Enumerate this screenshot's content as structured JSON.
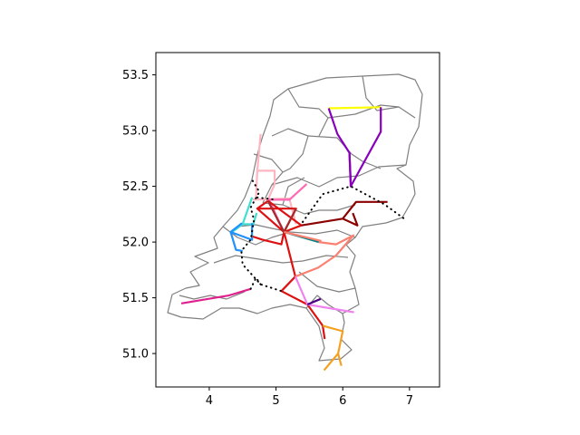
{
  "chart_data": {
    "type": "map",
    "title": "",
    "xlabel": "",
    "ylabel": "",
    "xlim": [
      3.2,
      7.45
    ],
    "ylim": [
      50.7,
      53.7
    ],
    "xticks": [
      4,
      5,
      6,
      7
    ],
    "xtick_labels": [
      "4",
      "5",
      "6",
      "7"
    ],
    "yticks": [
      51.0,
      51.5,
      52.0,
      52.5,
      53.0,
      53.5
    ],
    "ytick_labels": [
      "51.0",
      "51.5",
      "52.0",
      "52.5",
      "53.0",
      "53.5"
    ],
    "grid": false,
    "legend": "none",
    "background_map": {
      "description": "Netherlands provincial and municipal borders",
      "color": "#808080"
    },
    "routes": [
      {
        "color": "#ffff00",
        "style": "solid",
        "points": [
          [
            5.79,
            53.2
          ],
          [
            6.57,
            53.21
          ]
        ]
      },
      {
        "color": "#8800bb",
        "style": "solid",
        "points": [
          [
            5.79,
            53.2
          ],
          [
            5.92,
            52.97
          ],
          [
            6.1,
            52.8
          ],
          [
            6.12,
            52.5
          ],
          [
            6.57,
            52.99
          ],
          [
            6.57,
            53.21
          ]
        ]
      },
      {
        "color": "#8800bb",
        "style": "solid",
        "points": [
          [
            6.1,
            52.8
          ],
          [
            6.12,
            52.54
          ]
        ]
      },
      {
        "color": "#ffb6c1",
        "style": "solid",
        "points": [
          [
            4.77,
            52.97
          ],
          [
            4.72,
            52.64
          ],
          [
            4.7,
            52.4
          ]
        ]
      },
      {
        "color": "#ffb6c1",
        "style": "solid",
        "points": [
          [
            4.72,
            52.64
          ],
          [
            4.98,
            52.64
          ],
          [
            4.98,
            52.52
          ],
          [
            4.88,
            52.38
          ]
        ]
      },
      {
        "color": "#ffb6c1",
        "style": "solid",
        "points": [
          [
            4.65,
            52.38
          ],
          [
            5.2,
            52.39
          ],
          [
            5.3,
            52.16
          ]
        ]
      },
      {
        "color": "#ff69b4",
        "style": "solid",
        "points": [
          [
            4.88,
            52.38
          ],
          [
            5.2,
            52.38
          ],
          [
            5.46,
            52.52
          ]
        ]
      },
      {
        "color": "#ff69b4",
        "style": "solid",
        "points": [
          [
            4.9,
            52.37
          ],
          [
            5.12,
            52.09
          ]
        ]
      },
      {
        "color": "#40e0d0",
        "style": "solid",
        "points": [
          [
            4.64,
            52.4
          ],
          [
            4.5,
            52.16
          ],
          [
            4.32,
            52.08
          ]
        ]
      },
      {
        "color": "#40e0d0",
        "style": "solid",
        "points": [
          [
            4.5,
            52.16
          ],
          [
            4.66,
            52.16
          ],
          [
            4.71,
            52.26
          ]
        ]
      },
      {
        "color": "#1e90ff",
        "style": "solid",
        "points": [
          [
            4.49,
            52.17
          ],
          [
            4.32,
            52.09
          ],
          [
            4.4,
            51.93
          ],
          [
            4.5,
            51.92
          ]
        ]
      },
      {
        "color": "#1e90ff",
        "style": "solid",
        "points": [
          [
            4.32,
            52.09
          ],
          [
            4.64,
            52.02
          ],
          [
            4.64,
            52.17
          ]
        ]
      },
      {
        "color": "#e0208c",
        "style": "solid",
        "points": [
          [
            3.58,
            51.45
          ],
          [
            4.29,
            51.52
          ],
          [
            4.62,
            51.58
          ]
        ]
      },
      {
        "color": "#dd1111",
        "style": "solid",
        "points": [
          [
            4.88,
            52.37
          ],
          [
            4.72,
            52.3
          ],
          [
            5.12,
            52.09
          ],
          [
            5.08,
            51.98
          ],
          [
            4.8,
            52.02
          ],
          [
            4.65,
            52.05
          ]
        ]
      },
      {
        "color": "#dd1111",
        "style": "solid",
        "points": [
          [
            5.12,
            52.09
          ],
          [
            5.29,
            51.69
          ],
          [
            5.08,
            51.56
          ],
          [
            5.47,
            51.44
          ],
          [
            5.7,
            51.25
          ],
          [
            5.73,
            51.13
          ]
        ]
      },
      {
        "color": "#dd1111",
        "style": "solid",
        "points": [
          [
            4.72,
            52.3
          ],
          [
            5.3,
            52.3
          ],
          [
            5.12,
            52.09
          ]
        ]
      },
      {
        "color": "#dd1111",
        "style": "solid",
        "points": [
          [
            4.88,
            52.37
          ],
          [
            5.38,
            52.15
          ],
          [
            5.12,
            52.09
          ]
        ]
      },
      {
        "color": "#8b0000",
        "style": "solid",
        "points": [
          [
            5.38,
            52.15
          ],
          [
            6.0,
            52.21
          ],
          [
            6.2,
            52.36
          ],
          [
            6.67,
            52.36
          ]
        ]
      },
      {
        "color": "#8b0000",
        "style": "solid",
        "points": [
          [
            6.0,
            52.21
          ],
          [
            6.22,
            52.15
          ],
          [
            6.15,
            52.26
          ]
        ]
      },
      {
        "color": "#a52a2a",
        "style": "solid",
        "points": [
          [
            4.88,
            52.37
          ],
          [
            5.12,
            52.09
          ],
          [
            5.3,
            52.3
          ]
        ]
      },
      {
        "color": "#008080",
        "style": "solid",
        "points": [
          [
            5.12,
            52.09
          ],
          [
            5.64,
            52.0
          ]
        ]
      },
      {
        "color": "#fa8072",
        "style": "solid",
        "points": [
          [
            5.64,
            52.0
          ],
          [
            5.9,
            51.98
          ],
          [
            6.16,
            52.06
          ],
          [
            5.9,
            51.88
          ],
          [
            5.63,
            51.77
          ],
          [
            5.29,
            51.69
          ]
        ]
      },
      {
        "color": "#fa8072",
        "style": "solid",
        "points": [
          [
            5.12,
            52.09
          ],
          [
            5.68,
            52.01
          ]
        ]
      },
      {
        "color": "#ee82ee",
        "style": "solid",
        "points": [
          [
            5.29,
            51.69
          ],
          [
            5.47,
            51.44
          ],
          [
            6.17,
            51.37
          ]
        ]
      },
      {
        "color": "#4b0082",
        "style": "solid",
        "points": [
          [
            5.47,
            51.44
          ],
          [
            5.67,
            51.49
          ]
        ]
      },
      {
        "color": "#f4a020",
        "style": "solid",
        "points": [
          [
            5.7,
            51.25
          ],
          [
            6.0,
            51.2
          ],
          [
            5.93,
            51.0
          ],
          [
            5.98,
            50.89
          ]
        ]
      },
      {
        "color": "#f4a020",
        "style": "solid",
        "points": [
          [
            5.93,
            51.0
          ],
          [
            5.72,
            50.85
          ]
        ]
      },
      {
        "color": "#000000",
        "style": "dotted",
        "points": [
          [
            4.65,
            52.55
          ],
          [
            4.75,
            52.45
          ],
          [
            4.62,
            52.31
          ],
          [
            4.67,
            52.2
          ],
          [
            4.62,
            52.02
          ],
          [
            4.48,
            51.92
          ],
          [
            4.5,
            51.8
          ],
          [
            4.77,
            51.62
          ],
          [
            5.08,
            51.56
          ]
        ]
      },
      {
        "color": "#000000",
        "style": "dotted",
        "points": [
          [
            4.77,
            51.62
          ],
          [
            4.7,
            51.68
          ],
          [
            4.62,
            51.58
          ]
        ]
      },
      {
        "color": "#000000",
        "style": "dotted",
        "points": [
          [
            5.4,
            52.18
          ],
          [
            5.7,
            52.43
          ],
          [
            6.12,
            52.5
          ],
          [
            6.62,
            52.34
          ],
          [
            6.92,
            52.21
          ]
        ]
      },
      {
        "color": "#000000",
        "style": "dotted",
        "points": [
          [
            4.72,
            52.4
          ],
          [
            5.0,
            52.38
          ]
        ]
      }
    ]
  }
}
